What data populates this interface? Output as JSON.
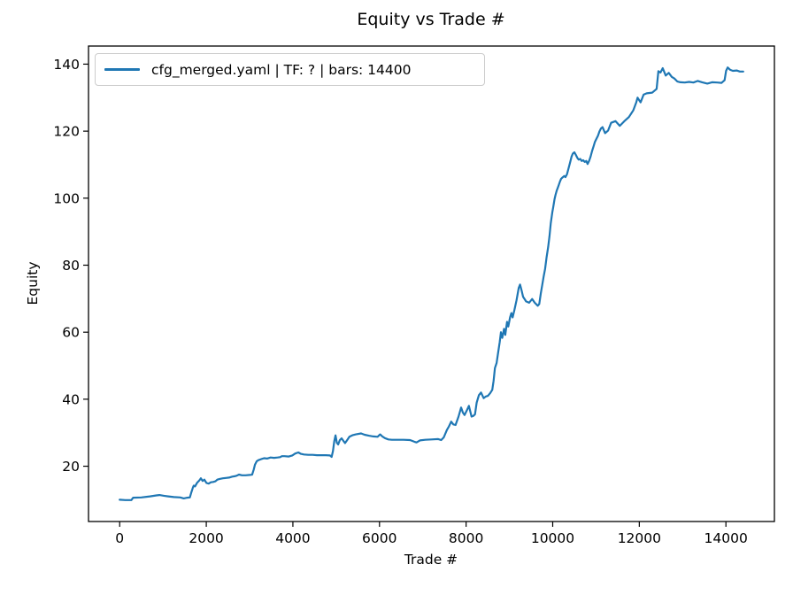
{
  "chart_data": {
    "type": "line",
    "title": "Equity vs Trade #",
    "xlabel": "Trade #",
    "ylabel": "Equity",
    "legend": [
      "cfg_merged.yaml | TF: ? | bars: 14400"
    ],
    "legend_position": "upper left",
    "line_color": "#1f77b4",
    "grid": false,
    "xlim": [
      -720,
      15120
    ],
    "ylim": [
      3.5,
      145.4
    ],
    "x_ticks": [
      0,
      2000,
      4000,
      6000,
      8000,
      10000,
      12000,
      14000
    ],
    "y_ticks": [
      20,
      40,
      60,
      80,
      100,
      120,
      140
    ],
    "series": [
      {
        "name": "cfg_merged.yaml | TF: ? | bars: 14400",
        "points": [
          [
            0,
            10.0
          ],
          [
            130,
            9.9
          ],
          [
            270,
            9.9
          ],
          [
            310,
            10.6
          ],
          [
            500,
            10.7
          ],
          [
            700,
            11.0
          ],
          [
            850,
            11.3
          ],
          [
            920,
            11.4
          ],
          [
            1020,
            11.2
          ],
          [
            1120,
            11.0
          ],
          [
            1250,
            10.8
          ],
          [
            1400,
            10.7
          ],
          [
            1480,
            10.4
          ],
          [
            1560,
            10.6
          ],
          [
            1620,
            10.7
          ],
          [
            1655,
            12.2
          ],
          [
            1690,
            13.6
          ],
          [
            1710,
            14.2
          ],
          [
            1740,
            14.0
          ],
          [
            1790,
            15.1
          ],
          [
            1840,
            15.8
          ],
          [
            1875,
            16.4
          ],
          [
            1915,
            15.6
          ],
          [
            1955,
            16.0
          ],
          [
            2005,
            15.0
          ],
          [
            2055,
            14.8
          ],
          [
            2105,
            15.2
          ],
          [
            2160,
            15.3
          ],
          [
            2210,
            15.5
          ],
          [
            2255,
            16.0
          ],
          [
            2310,
            16.2
          ],
          [
            2385,
            16.4
          ],
          [
            2455,
            16.5
          ],
          [
            2525,
            16.6
          ],
          [
            2600,
            16.9
          ],
          [
            2655,
            17.0
          ],
          [
            2705,
            17.2
          ],
          [
            2755,
            17.5
          ],
          [
            2825,
            17.3
          ],
          [
            2905,
            17.3
          ],
          [
            3005,
            17.4
          ],
          [
            3060,
            17.5
          ],
          [
            3095,
            19.0
          ],
          [
            3125,
            20.5
          ],
          [
            3165,
            21.5
          ],
          [
            3205,
            21.8
          ],
          [
            3265,
            22.1
          ],
          [
            3335,
            22.4
          ],
          [
            3405,
            22.3
          ],
          [
            3485,
            22.6
          ],
          [
            3565,
            22.5
          ],
          [
            3645,
            22.6
          ],
          [
            3705,
            22.7
          ],
          [
            3745,
            23.0
          ],
          [
            3805,
            23.0
          ],
          [
            3905,
            22.9
          ],
          [
            3985,
            23.2
          ],
          [
            4055,
            23.8
          ],
          [
            4125,
            24.1
          ],
          [
            4185,
            23.7
          ],
          [
            4255,
            23.5
          ],
          [
            4355,
            23.4
          ],
          [
            4455,
            23.4
          ],
          [
            4555,
            23.3
          ],
          [
            4655,
            23.3
          ],
          [
            4755,
            23.3
          ],
          [
            4855,
            23.2
          ],
          [
            4895,
            22.8
          ],
          [
            4925,
            24.5
          ],
          [
            4955,
            27.5
          ],
          [
            4985,
            29.2
          ],
          [
            5015,
            27.0
          ],
          [
            5045,
            26.5
          ],
          [
            5085,
            27.8
          ],
          [
            5125,
            28.3
          ],
          [
            5165,
            27.6
          ],
          [
            5205,
            26.9
          ],
          [
            5255,
            27.8
          ],
          [
            5305,
            28.8
          ],
          [
            5385,
            29.3
          ],
          [
            5455,
            29.5
          ],
          [
            5575,
            29.8
          ],
          [
            5655,
            29.4
          ],
          [
            5755,
            29.1
          ],
          [
            5855,
            28.9
          ],
          [
            5955,
            28.8
          ],
          [
            6015,
            29.5
          ],
          [
            6065,
            28.9
          ],
          [
            6125,
            28.4
          ],
          [
            6205,
            28.0
          ],
          [
            6285,
            27.9
          ],
          [
            6405,
            27.9
          ],
          [
            6555,
            27.9
          ],
          [
            6705,
            27.8
          ],
          [
            6805,
            27.3
          ],
          [
            6855,
            27.1
          ],
          [
            6935,
            27.7
          ],
          [
            7055,
            27.9
          ],
          [
            7205,
            28.0
          ],
          [
            7355,
            28.1
          ],
          [
            7425,
            27.8
          ],
          [
            7485,
            28.6
          ],
          [
            7555,
            30.8
          ],
          [
            7605,
            31.9
          ],
          [
            7655,
            33.3
          ],
          [
            7705,
            32.5
          ],
          [
            7755,
            32.3
          ],
          [
            7825,
            34.8
          ],
          [
            7885,
            37.5
          ],
          [
            7925,
            36.0
          ],
          [
            7965,
            35.3
          ],
          [
            8025,
            36.9
          ],
          [
            8065,
            38.0
          ],
          [
            8125,
            34.8
          ],
          [
            8165,
            35.0
          ],
          [
            8205,
            35.5
          ],
          [
            8245,
            39.0
          ],
          [
            8295,
            41.2
          ],
          [
            8345,
            42.0
          ],
          [
            8405,
            40.3
          ],
          [
            8455,
            40.8
          ],
          [
            8505,
            41.0
          ],
          [
            8555,
            41.8
          ],
          [
            8605,
            42.8
          ],
          [
            8635,
            45.5
          ],
          [
            8665,
            49.3
          ],
          [
            8705,
            50.8
          ],
          [
            8735,
            53.5
          ],
          [
            8775,
            57.0
          ],
          [
            8805,
            60.0
          ],
          [
            8835,
            58.3
          ],
          [
            8875,
            61.0
          ],
          [
            8905,
            59.2
          ],
          [
            8945,
            63.1
          ],
          [
            8975,
            61.7
          ],
          [
            9015,
            64.4
          ],
          [
            9045,
            65.7
          ],
          [
            9075,
            64.4
          ],
          [
            9115,
            66.6
          ],
          [
            9165,
            69.5
          ],
          [
            9215,
            73.2
          ],
          [
            9245,
            74.2
          ],
          [
            9285,
            72.3
          ],
          [
            9315,
            70.6
          ],
          [
            9385,
            69.2
          ],
          [
            9455,
            68.8
          ],
          [
            9525,
            69.9
          ],
          [
            9585,
            68.8
          ],
          [
            9655,
            67.9
          ],
          [
            9690,
            68.4
          ],
          [
            9725,
            71.5
          ],
          [
            9760,
            74.3
          ],
          [
            9790,
            76.5
          ],
          [
            9825,
            78.9
          ],
          [
            9860,
            82.4
          ],
          [
            9895,
            85.5
          ],
          [
            9925,
            88.5
          ],
          [
            9955,
            92.5
          ],
          [
            9990,
            95.7
          ],
          [
            10015,
            97.5
          ],
          [
            10040,
            99.6
          ],
          [
            10065,
            101.0
          ],
          [
            10095,
            102.3
          ],
          [
            10130,
            103.6
          ],
          [
            10165,
            104.9
          ],
          [
            10195,
            105.8
          ],
          [
            10230,
            106.2
          ],
          [
            10265,
            106.6
          ],
          [
            10295,
            106.3
          ],
          [
            10330,
            107.1
          ],
          [
            10365,
            108.9
          ],
          [
            10400,
            110.6
          ],
          [
            10435,
            112.4
          ],
          [
            10465,
            113.3
          ],
          [
            10500,
            113.7
          ],
          [
            10535,
            112.9
          ],
          [
            10570,
            112.0
          ],
          [
            10600,
            111.5
          ],
          [
            10635,
            111.7
          ],
          [
            10670,
            111.1
          ],
          [
            10705,
            111.3
          ],
          [
            10740,
            110.8
          ],
          [
            10775,
            111.1
          ],
          [
            10805,
            110.2
          ],
          [
            10840,
            111.1
          ],
          [
            10875,
            112.4
          ],
          [
            10910,
            114.1
          ],
          [
            10945,
            115.5
          ],
          [
            10975,
            116.8
          ],
          [
            11010,
            117.7
          ],
          [
            11045,
            118.6
          ],
          [
            11080,
            119.9
          ],
          [
            11115,
            120.8
          ],
          [
            11150,
            121.2
          ],
          [
            11210,
            119.4
          ],
          [
            11280,
            120.2
          ],
          [
            11350,
            122.5
          ],
          [
            11450,
            123.0
          ],
          [
            11550,
            121.6
          ],
          [
            11650,
            122.9
          ],
          [
            11760,
            124.2
          ],
          [
            11860,
            126.2
          ],
          [
            11930,
            128.6
          ],
          [
            11960,
            130.0
          ],
          [
            12030,
            128.6
          ],
          [
            12100,
            130.9
          ],
          [
            12170,
            131.3
          ],
          [
            12300,
            131.5
          ],
          [
            12400,
            132.6
          ],
          [
            12440,
            137.9
          ],
          [
            12490,
            137.5
          ],
          [
            12540,
            138.8
          ],
          [
            12610,
            136.6
          ],
          [
            12680,
            137.4
          ],
          [
            12750,
            136.2
          ],
          [
            12810,
            135.7
          ],
          [
            12880,
            134.8
          ],
          [
            12950,
            134.6
          ],
          [
            13050,
            134.5
          ],
          [
            13150,
            134.7
          ],
          [
            13250,
            134.5
          ],
          [
            13350,
            135.0
          ],
          [
            13450,
            134.6
          ],
          [
            13570,
            134.2
          ],
          [
            13680,
            134.6
          ],
          [
            13800,
            134.5
          ],
          [
            13900,
            134.4
          ],
          [
            13970,
            135.2
          ],
          [
            14005,
            138.0
          ],
          [
            14040,
            139.0
          ],
          [
            14100,
            138.3
          ],
          [
            14160,
            138.0
          ],
          [
            14250,
            138.1
          ],
          [
            14320,
            137.8
          ],
          [
            14400,
            137.8
          ]
        ]
      }
    ]
  }
}
